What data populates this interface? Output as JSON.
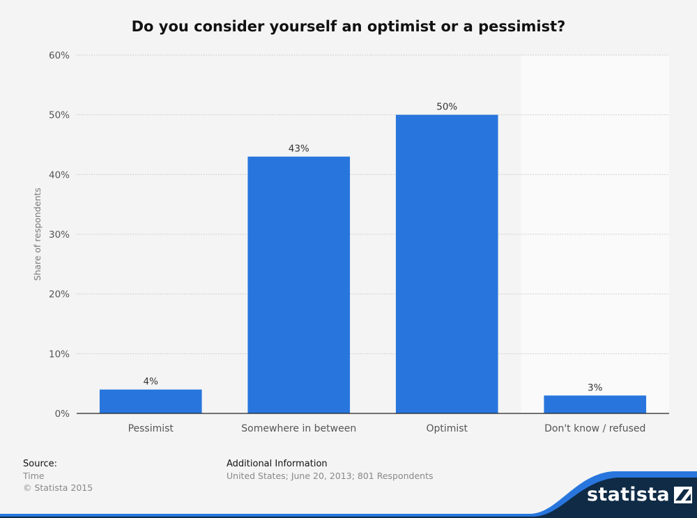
{
  "title": "Do you consider yourself an optimist or a pessimist?",
  "chart_data": {
    "type": "bar",
    "title": "Do you consider yourself an optimist or a pessimist?",
    "categories": [
      "Pessimist",
      "Somewhere in between",
      "Optimist",
      "Don't know / refused"
    ],
    "values": [
      4,
      43,
      50,
      3
    ],
    "value_labels": [
      "4%",
      "43%",
      "50%",
      "3%"
    ],
    "xlabel": "",
    "ylabel": "Share of respondents",
    "ylim": [
      0,
      60
    ],
    "yticks": [
      0,
      10,
      20,
      30,
      40,
      50,
      60
    ],
    "ytick_labels": [
      "0%",
      "10%",
      "20%",
      "30%",
      "40%",
      "50%",
      "60%"
    ],
    "grid": true,
    "legend": "none",
    "bar_color": "#2876dd"
  },
  "footer": {
    "source_heading": "Source:",
    "source_lines": [
      "Time",
      "© Statista 2015"
    ],
    "info_heading": "Additional Information",
    "info_text": "United States; June 20, 2013; 801 Respondents"
  },
  "brand": {
    "name": "statista",
    "icon": "statista-logo-icon",
    "band_color": "#0f2b46",
    "accent_color": "#2876dd"
  }
}
